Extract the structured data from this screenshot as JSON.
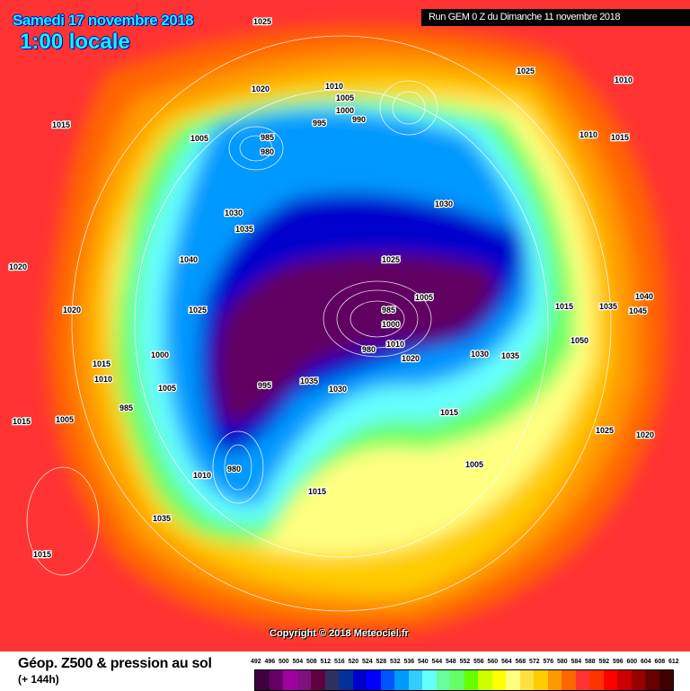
{
  "header": {
    "date": "Samedi 17 novembre 2018",
    "time": "1:00 locale",
    "run": "Run GEM 0 Z du Dimanche 11 novembre 2018"
  },
  "copyright": "Copyright © 2018 Meteociel.fr",
  "footer": {
    "title": "Géop. Z500 & pression au sol",
    "subtitle": "(+ 144h)"
  },
  "legend": {
    "labels": [
      "492",
      "496",
      "500",
      "504",
      "508",
      "512",
      "516",
      "520",
      "524",
      "528",
      "532",
      "536",
      "540",
      "544",
      "548",
      "552",
      "556",
      "560",
      "564",
      "568",
      "572",
      "576",
      "580",
      "584",
      "588",
      "592",
      "596",
      "600",
      "604",
      "608",
      "612"
    ],
    "colors": [
      "#400040",
      "#660066",
      "#a000a0",
      "#801080",
      "#600040",
      "#303060",
      "#003399",
      "#0000cc",
      "#0000ff",
      "#0055ff",
      "#0099ff",
      "#33ccff",
      "#66ffff",
      "#66ff99",
      "#66ff66",
      "#66ff00",
      "#ccff00",
      "#ffff00",
      "#ffff80",
      "#ffe040",
      "#ffcc00",
      "#ff9900",
      "#ff6600",
      "#ff3333",
      "#ff3300",
      "#ff0000",
      "#cc0000",
      "#990000",
      "#660000",
      "#400000",
      "#000000"
    ]
  },
  "pressure_labels": [
    "1025",
    "1015",
    "1020",
    "1010",
    "1005",
    "995",
    "990",
    "985",
    "980",
    "1005",
    "1000",
    "1010",
    "1015",
    "1025",
    "1030",
    "1035",
    "1030",
    "1040",
    "1025",
    "1020",
    "1010",
    "1015",
    "1000",
    "1005",
    "985",
    "980",
    "995",
    "1035",
    "1030",
    "1025",
    "1020",
    "1010",
    "1005",
    "1000",
    "985",
    "980",
    "1015",
    "1035",
    "1040",
    "1045",
    "1050",
    "1035",
    "1030",
    "1025",
    "1020",
    "1015",
    "1005",
    "1035",
    "1015",
    "1020",
    "1015",
    "1010",
    "1005",
    "1015",
    "1010"
  ],
  "colors": {
    "outer": "#ff3333",
    "low_core": "#600060"
  }
}
